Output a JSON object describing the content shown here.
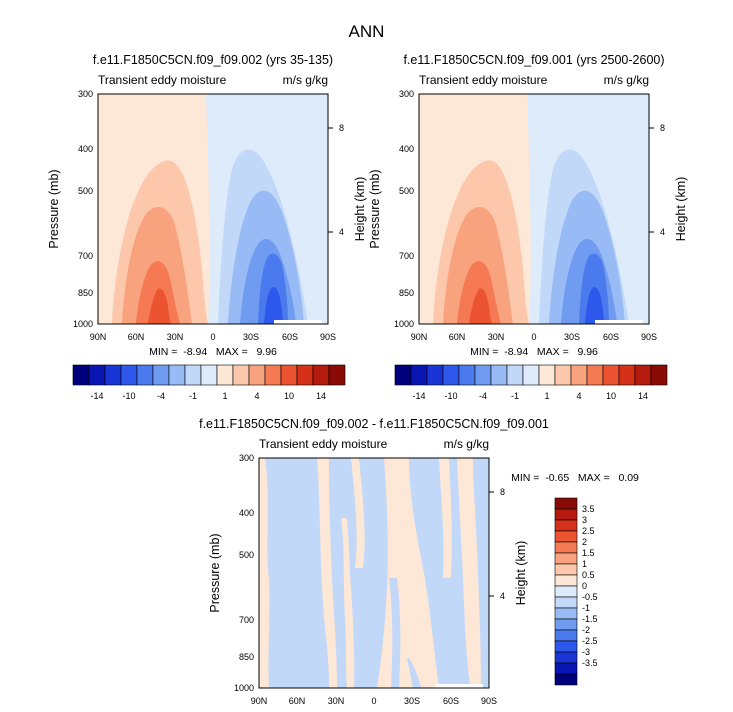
{
  "figure": {
    "title": "ANN"
  },
  "colors": {
    "scale": [
      "#00007f",
      "#0a16b4",
      "#1a35d6",
      "#2e58ec",
      "#4a7aed",
      "#6f9bf0",
      "#98baf5",
      "#c2d8f9",
      "#ddebfb",
      "#fde7d6",
      "#fcc7aa",
      "#f9a37e",
      "#f57a54",
      "#ec5330",
      "#d53018",
      "#b41a0e",
      "#8a0a06"
    ]
  },
  "chart_data": [
    {
      "type": "heatmap",
      "title": "f.e11.F1850C5CN.f09_f09.002 (yrs 35-135)",
      "left_subtitle": "Transient eddy moisture",
      "right_subtitle": "m/s g/kg",
      "ylabel": "Pressure (mb)",
      "y2label": "Height (km)",
      "x_ticks": [
        "90N",
        "60N",
        "30N",
        "0",
        "30S",
        "60S",
        "90S"
      ],
      "y_ticks": [
        "300",
        "400",
        "500",
        "700",
        "850",
        "1000"
      ],
      "y2_ticks": [
        "8",
        "4"
      ],
      "stats": "MIN =  -8.94   MAX =   9.96",
      "min": -8.94,
      "max": 9.96,
      "colorbar_labels": [
        "-14",
        "-10",
        "-4",
        "-1",
        "1",
        "4",
        "10",
        "14"
      ]
    },
    {
      "type": "heatmap",
      "title": "f.e11.F1850C5CN.f09_f09.001 (yrs 2500-2600)",
      "left_subtitle": "Transient eddy moisture",
      "right_subtitle": "m/s g/kg",
      "ylabel": "Pressure (mb)",
      "y2label": "Height (km)",
      "x_ticks": [
        "90N",
        "60N",
        "30N",
        "0",
        "30S",
        "60S",
        "90S"
      ],
      "y_ticks": [
        "300",
        "400",
        "500",
        "700",
        "850",
        "1000"
      ],
      "y2_ticks": [
        "8",
        "4"
      ],
      "stats": "MIN =  -8.94   MAX =   9.96",
      "min": -8.94,
      "max": 9.96,
      "colorbar_labels": [
        "-14",
        "-10",
        "-4",
        "-1",
        "1",
        "4",
        "10",
        "14"
      ]
    },
    {
      "type": "heatmap",
      "title": "f.e11.F1850C5CN.f09_f09.002 - f.e11.F1850C5CN.f09_f09.001",
      "left_subtitle": "Transient eddy moisture",
      "right_subtitle": "m/s g/kg",
      "ylabel": "Pressure (mb)",
      "y2label": "Height (km)",
      "x_ticks": [
        "90N",
        "60N",
        "30N",
        "0",
        "30S",
        "60S",
        "90S"
      ],
      "y_ticks": [
        "300",
        "400",
        "500",
        "700",
        "850",
        "1000"
      ],
      "y2_ticks": [
        "8",
        "4"
      ],
      "stats": "MIN =  -0.65   MAX =   0.09",
      "min": -0.65,
      "max": 0.09,
      "colorbar_labels": [
        "3.5",
        "3",
        "2.5",
        "2",
        "1.5",
        "1",
        "0.5",
        "0",
        "-0.5",
        "-1",
        "-1.5",
        "-2",
        "-2.5",
        "-3",
        "-3.5"
      ]
    }
  ]
}
